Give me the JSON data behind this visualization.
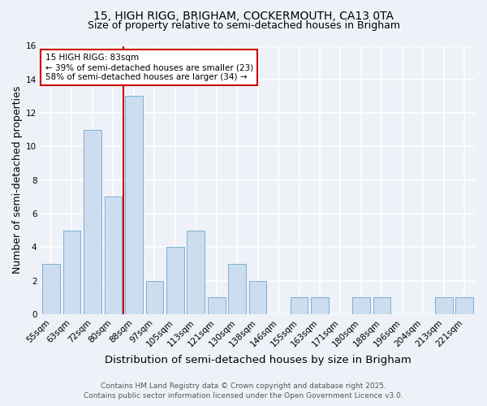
{
  "title1": "15, HIGH RIGG, BRIGHAM, COCKERMOUTH, CA13 0TA",
  "title2": "Size of property relative to semi-detached houses in Brigham",
  "xlabel": "Distribution of semi-detached houses by size in Brigham",
  "ylabel": "Number of semi-detached properties",
  "categories": [
    "55sqm",
    "63sqm",
    "72sqm",
    "80sqm",
    "88sqm",
    "97sqm",
    "105sqm",
    "113sqm",
    "121sqm",
    "130sqm",
    "138sqm",
    "146sqm",
    "155sqm",
    "163sqm",
    "171sqm",
    "180sqm",
    "188sqm",
    "196sqm",
    "204sqm",
    "213sqm",
    "221sqm"
  ],
  "values": [
    3,
    5,
    11,
    7,
    13,
    2,
    4,
    5,
    1,
    3,
    2,
    0,
    1,
    1,
    0,
    1,
    1,
    0,
    0,
    1,
    1
  ],
  "bar_color": "#ccddf0",
  "bar_edge_color": "#7bafd4",
  "vline_x_index": 3,
  "vline_color": "#cc0000",
  "annotation_title": "15 HIGH RIGG: 83sqm",
  "annotation_line1": "← 39% of semi-detached houses are smaller (23)",
  "annotation_line2": "58% of semi-detached houses are larger (34) →",
  "annotation_box_color": "#ffffff",
  "annotation_box_edge": "#cc0000",
  "ylim": [
    0,
    16
  ],
  "yticks": [
    0,
    2,
    4,
    6,
    8,
    10,
    12,
    14,
    16
  ],
  "footer1": "Contains HM Land Registry data © Crown copyright and database right 2025.",
  "footer2": "Contains public sector information licensed under the Open Government Licence v3.0.",
  "bg_color": "#eef2f8",
  "grid_color": "#ffffff",
  "title_fontsize": 10,
  "subtitle_fontsize": 9,
  "axis_label_fontsize": 9,
  "tick_fontsize": 7.5,
  "annotation_fontsize": 7.5,
  "footer_fontsize": 6.5
}
